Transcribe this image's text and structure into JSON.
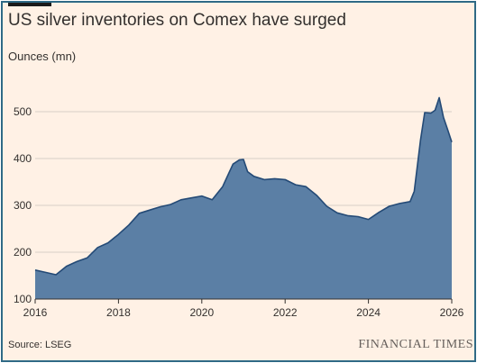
{
  "header": {
    "title": "US silver inventories on Comex have surged",
    "units": "Ounces (mn)"
  },
  "footer": {
    "source": "Source: LSEG",
    "brand": "FINANCIAL TIMES"
  },
  "colors": {
    "background": "#fff1e5",
    "border": "#2f6a86",
    "area_fill": "#5b7fa5",
    "line": "#244a76",
    "grid": "#d7cfc6"
  },
  "chart_data": {
    "type": "area",
    "title": "US silver inventories on Comex have surged",
    "ylabel": "Ounces (mn)",
    "xlabel": "",
    "xlim": [
      2016,
      2026
    ],
    "ylim": [
      100,
      500
    ],
    "yticks": [
      100,
      200,
      300,
      400,
      500
    ],
    "xticks": [
      2016,
      2018,
      2020,
      2022,
      2024,
      2026
    ],
    "grid": "horizontal",
    "x": [
      2016.0,
      2016.25,
      2016.5,
      2016.75,
      2017.0,
      2017.25,
      2017.5,
      2017.75,
      2018.0,
      2018.25,
      2018.5,
      2018.75,
      2019.0,
      2019.25,
      2019.5,
      2019.75,
      2020.0,
      2020.25,
      2020.5,
      2020.75,
      2020.9,
      2021.0,
      2021.1,
      2021.25,
      2021.5,
      2021.75,
      2022.0,
      2022.25,
      2022.5,
      2022.75,
      2023.0,
      2023.25,
      2023.5,
      2023.75,
      2024.0,
      2024.25,
      2024.5,
      2024.75,
      2025.0,
      2025.1,
      2025.25,
      2025.35,
      2025.5,
      2025.6,
      2025.7,
      2025.8,
      2025.9,
      2026.0
    ],
    "values": [
      162,
      157,
      152,
      170,
      180,
      188,
      210,
      220,
      238,
      258,
      283,
      290,
      297,
      302,
      312,
      316,
      320,
      312,
      340,
      388,
      397,
      398,
      372,
      362,
      355,
      357,
      355,
      344,
      340,
      322,
      298,
      284,
      278,
      276,
      270,
      285,
      298,
      304,
      308,
      330,
      440,
      498,
      497,
      503,
      530,
      488,
      462,
      435
    ]
  }
}
